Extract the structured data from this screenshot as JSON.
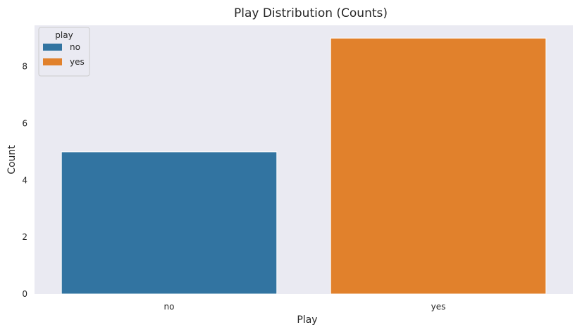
{
  "chart_data": {
    "type": "bar",
    "title": "Play Distribution (Counts)",
    "xlabel": "Play",
    "ylabel": "Count",
    "categories": [
      "no",
      "yes"
    ],
    "values": [
      5,
      9
    ],
    "colors": [
      "#3274a1",
      "#e1812c"
    ],
    "yticks": [
      0,
      2,
      4,
      6,
      8
    ],
    "ylim": [
      0,
      9.45
    ],
    "grid": false,
    "background": "#eaeaf2",
    "legend": {
      "title": "play",
      "position": "top-left",
      "entries": [
        {
          "label": "no",
          "color": "#3274a1"
        },
        {
          "label": "yes",
          "color": "#e1812c"
        }
      ]
    }
  }
}
